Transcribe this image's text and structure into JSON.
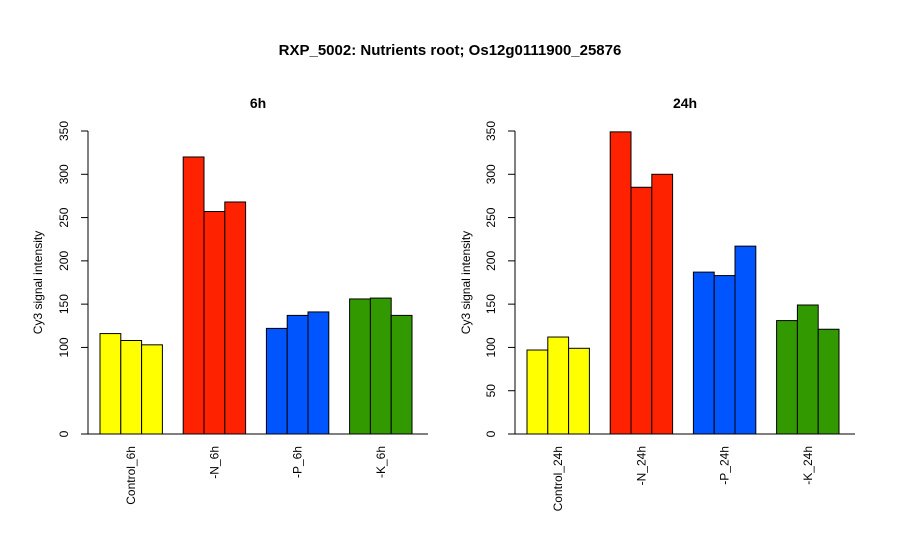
{
  "title": "RXP_5002: Nutrients root; Os12g0111900_25876",
  "chart_data": [
    {
      "type": "bar",
      "title": "6h",
      "ylabel": "Cy3 signal intensity",
      "ylim": [
        0,
        350
      ],
      "yticks": [
        0,
        100,
        150,
        200,
        250,
        300,
        350
      ],
      "categories": [
        "Control_6h",
        "-N_6h",
        "-P_6h",
        "-K_6h"
      ],
      "colors": [
        "#ffff00",
        "#ff2200",
        "#0055ff",
        "#339900"
      ],
      "groups": [
        {
          "name": "Control_6h",
          "values": [
            116,
            108,
            103
          ]
        },
        {
          "name": "-N_6h",
          "values": [
            320,
            257,
            268
          ]
        },
        {
          "name": "-P_6h",
          "values": [
            122,
            137,
            141
          ]
        },
        {
          "name": "-K_6h",
          "values": [
            156,
            157,
            137
          ]
        }
      ]
    },
    {
      "type": "bar",
      "title": "24h",
      "ylabel": "Cy3 signal intensity",
      "ylim": [
        0,
        350
      ],
      "yticks": [
        0,
        50,
        100,
        150,
        200,
        250,
        300,
        350
      ],
      "categories": [
        "Control_24h",
        "-N_24h",
        "-P_24h",
        "-K_24h"
      ],
      "colors": [
        "#ffff00",
        "#ff2200",
        "#0055ff",
        "#339900"
      ],
      "groups": [
        {
          "name": "Control_24h",
          "values": [
            97,
            112,
            99
          ]
        },
        {
          "name": "-N_24h",
          "values": [
            349,
            285,
            300
          ]
        },
        {
          "name": "-P_24h",
          "values": [
            187,
            183,
            217
          ]
        },
        {
          "name": "-K_24h",
          "values": [
            131,
            149,
            121
          ]
        }
      ]
    }
  ]
}
